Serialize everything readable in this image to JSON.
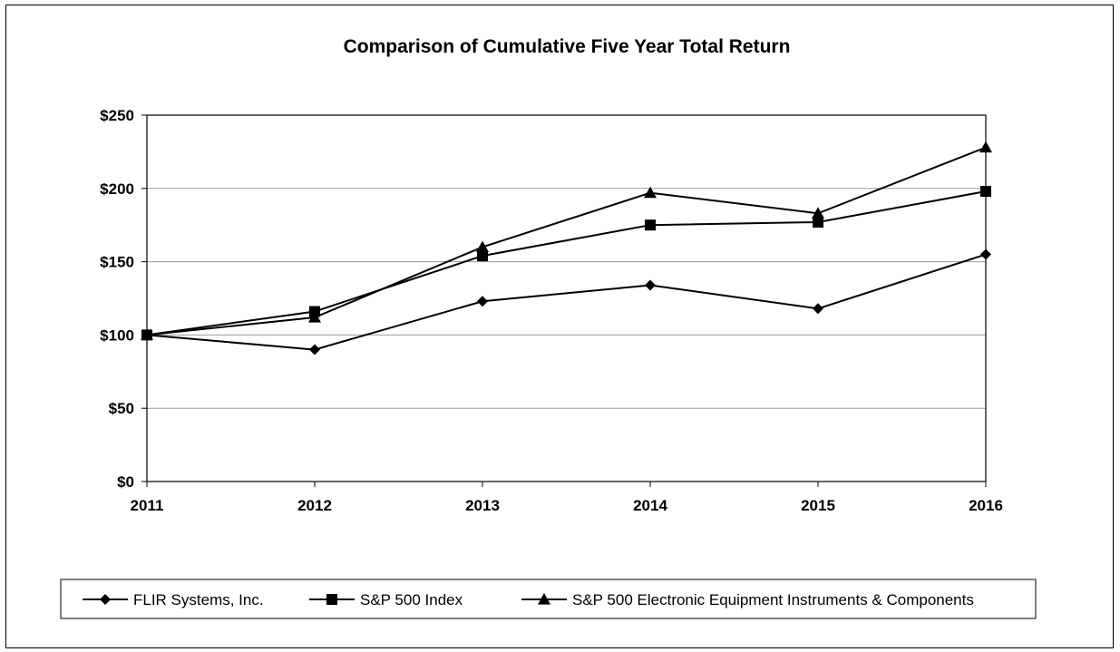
{
  "chart_data": {
    "type": "line",
    "title": "Comparison of Cumulative Five Year Total Return",
    "xlabel": "",
    "ylabel": "",
    "categories": [
      "2011",
      "2012",
      "2013",
      "2014",
      "2015",
      "2016"
    ],
    "ylim": [
      0,
      250
    ],
    "y_ticks": [
      0,
      50,
      100,
      150,
      200,
      250
    ],
    "y_tick_labels": [
      "$0",
      "$50",
      "$100",
      "$150",
      "$200",
      "$250"
    ],
    "grid": true,
    "legend_position": "bottom",
    "series": [
      {
        "name": "FLIR Systems, Inc.",
        "marker": "diamond",
        "values": [
          100,
          90,
          123,
          134,
          118,
          155
        ]
      },
      {
        "name": "S&P 500 Index",
        "marker": "square",
        "values": [
          100,
          116,
          154,
          175,
          177,
          198
        ]
      },
      {
        "name": "S&P 500 Electronic Equipment Instruments & Components",
        "marker": "triangle",
        "values": [
          100,
          112,
          160,
          197,
          183,
          228
        ]
      }
    ],
    "colors": {
      "line": "#000000",
      "grid": "#9a9a9a",
      "axis": "#000000"
    }
  }
}
